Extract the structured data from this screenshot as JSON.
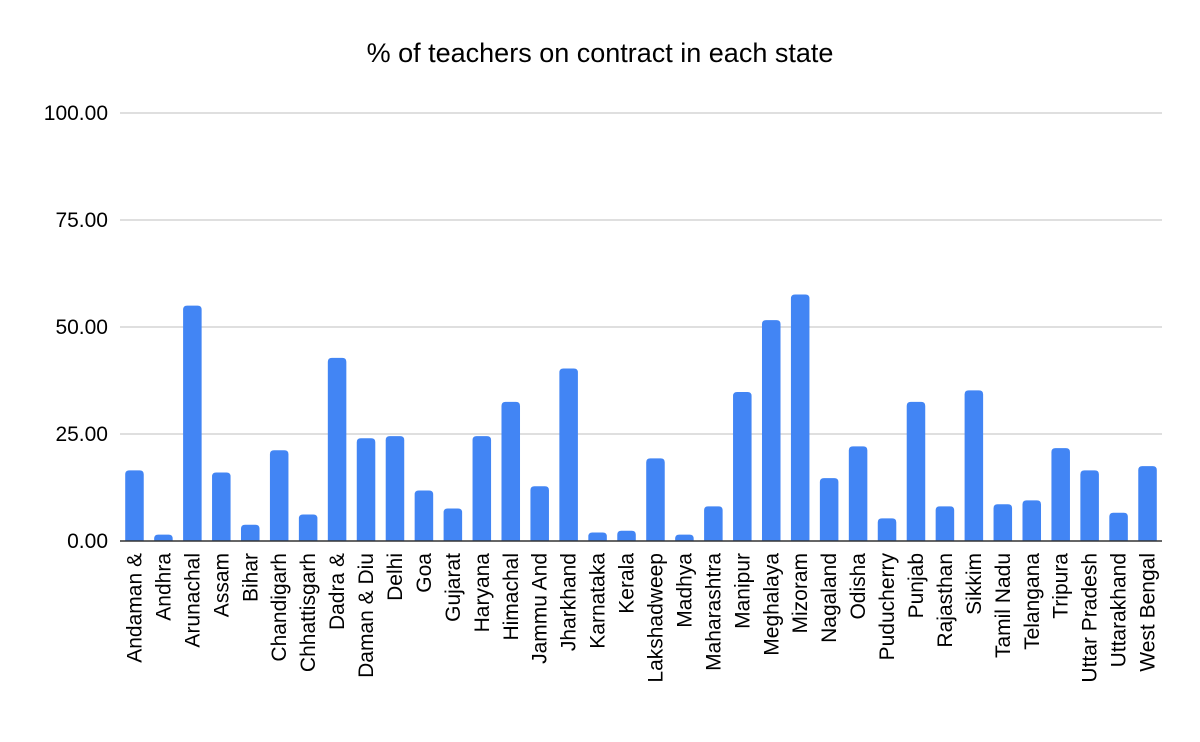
{
  "chart_data": {
    "type": "bar",
    "title": "% of teachers on contract in each state",
    "xlabel": "",
    "ylabel": "",
    "ylim": [
      0,
      100
    ],
    "yticks": [
      "0.00",
      "25.00",
      "50.00",
      "75.00",
      "100.00"
    ],
    "grid": true,
    "legend": "none",
    "bar_color": "#4285f4",
    "categories": [
      "Andaman &",
      "Andhra",
      "Arunachal",
      "Assam",
      "Bihar",
      "Chandigarh",
      "Chhattisgarh",
      "Dadra &",
      "Daman & Diu",
      "Delhi",
      "Goa",
      "Gujarat",
      "Haryana",
      "Himachal",
      "Jammu And",
      "Jharkhand",
      "Karnataka",
      "Kerala",
      "Lakshadweep",
      "Madhya",
      "Maharashtra",
      "Manipur",
      "Meghalaya",
      "Mizoram",
      "Nagaland",
      "Odisha",
      "Puducherry",
      "Punjab",
      "Rajasthan",
      "Sikkim",
      "Tamil Nadu",
      "Telangana",
      "Tripura",
      "Uttar Pradesh",
      "Uttarakhand",
      "West Bengal"
    ],
    "values": [
      16.5,
      1.5,
      55.0,
      16.0,
      3.8,
      21.2,
      6.2,
      42.8,
      24.0,
      24.5,
      11.8,
      7.6,
      24.5,
      32.5,
      12.8,
      40.3,
      2.0,
      2.4,
      19.3,
      1.5,
      8.1,
      34.8,
      51.6,
      57.6,
      14.7,
      22.1,
      5.3,
      32.5,
      8.1,
      35.2,
      8.6,
      9.5,
      21.7,
      16.5,
      6.6,
      17.5
    ]
  }
}
